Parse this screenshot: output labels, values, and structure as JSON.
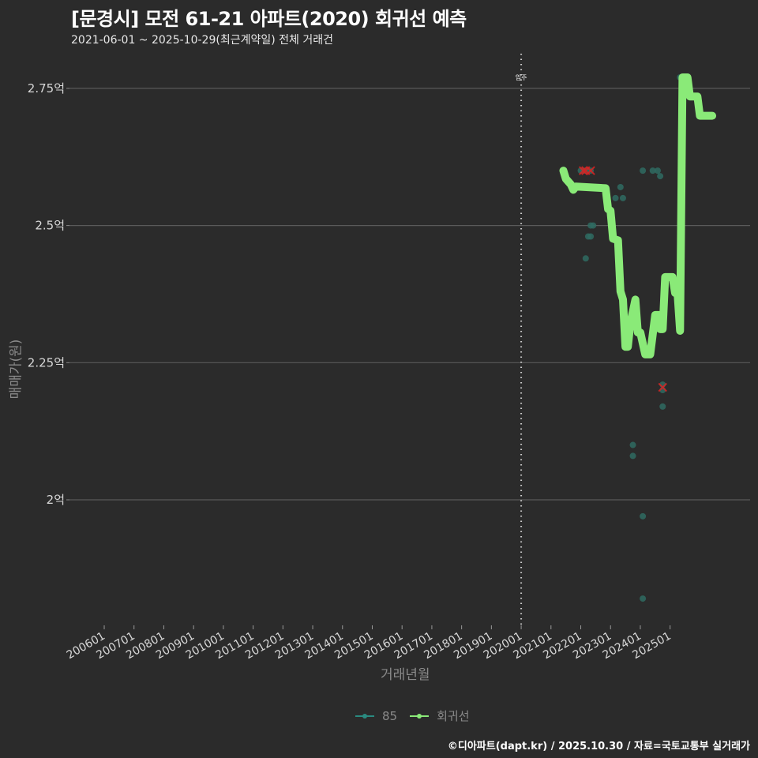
{
  "header": {
    "title": "[문경시] 모전 61-21 아파트(2020) 회귀선 예측",
    "subtitle": "2021-06-01 ~ 2025-10-29(최근계약일) 전체 거래건"
  },
  "footer": {
    "credit": "©디아파트(dapt.kr) / 2025.10.30 / 자료=국토교통부 실거래가"
  },
  "legend": [
    {
      "label": "85",
      "color": "#2a8a80"
    },
    {
      "label": "회귀선",
      "color": "#8aea78"
    }
  ],
  "colors": {
    "background": "#2b2b2b",
    "grid": "#5a5a5a",
    "line": "#8aea78",
    "point": "#2f6b62",
    "cancel": "#dd2222"
  },
  "chart_data": {
    "type": "line",
    "title": "[문경시] 모전 61-21 아파트(2020) 회귀선 예측",
    "subtitle": "2021-06-01 ~ 2025-10-29(최근계약일) 전체 거래건",
    "xlabel": "거래년월",
    "ylabel": "매매가(원)",
    "x_ticks": [
      "200601",
      "200701",
      "200801",
      "200901",
      "201001",
      "201101",
      "201201",
      "201301",
      "201401",
      "201501",
      "201601",
      "201701",
      "201801",
      "201901",
      "202001",
      "202101",
      "202201",
      "202301",
      "202401",
      "202501"
    ],
    "y_ticks": [
      "2억",
      "2.25억",
      "2.5억",
      "2.75억"
    ],
    "y_tick_values": [
      2.0,
      2.25,
      2.5,
      2.75
    ],
    "ylim": [
      1.77,
      2.8
    ],
    "grid": true,
    "legend_position": "bottom",
    "annotation": {
      "label": "입주",
      "x": "202001"
    },
    "series": [
      {
        "name": "회귀선",
        "type": "line",
        "points": [
          [
            "2021-06",
            2.6
          ],
          [
            "2021-07",
            2.585
          ],
          [
            "2021-09",
            2.575
          ],
          [
            "2021-10",
            2.565
          ],
          [
            "2021-11",
            2.571
          ],
          [
            "2022-11",
            2.568
          ],
          [
            "2022-12",
            2.53
          ],
          [
            "2023-01",
            2.527
          ],
          [
            "2023-02",
            2.476
          ],
          [
            "2023-04",
            2.473
          ],
          [
            "2023-05",
            2.38
          ],
          [
            "2023-06",
            2.365
          ],
          [
            "2023-07",
            2.279
          ],
          [
            "2023-08",
            2.279
          ],
          [
            "2023-09",
            2.322
          ],
          [
            "2023-11",
            2.365
          ],
          [
            "2023-12",
            2.305
          ],
          [
            "2024-01",
            2.305
          ],
          [
            "2024-03",
            2.265
          ],
          [
            "2024-05",
            2.265
          ],
          [
            "2024-07",
            2.337
          ],
          [
            "2024-09",
            2.337
          ],
          [
            "2024-09",
            2.311
          ],
          [
            "2024-10",
            2.311
          ],
          [
            "2024-11",
            2.406
          ],
          [
            "2025-02",
            2.406
          ],
          [
            "2025-03",
            2.377
          ],
          [
            "2025-04",
            2.377
          ],
          [
            "2025-05",
            2.308
          ],
          [
            "2025-06",
            2.77
          ],
          [
            "2025-08",
            2.77
          ],
          [
            "2025-09",
            2.735
          ],
          [
            "2025-12",
            2.735
          ],
          [
            "2026-01",
            2.7
          ],
          [
            "2026-06",
            2.7
          ]
        ]
      },
      {
        "name": "85",
        "type": "scatter",
        "points": [
          [
            "2022-01",
            2.6
          ],
          [
            "2022-02",
            2.6
          ],
          [
            "2022-03",
            2.6
          ],
          [
            "2022-05",
            2.6
          ],
          [
            "2022-03",
            2.44
          ],
          [
            "2022-04",
            2.48
          ],
          [
            "2022-05",
            2.48
          ],
          [
            "2022-05",
            2.5
          ],
          [
            "2022-06",
            2.5
          ],
          [
            "2023-03",
            2.55
          ],
          [
            "2023-05",
            2.57
          ],
          [
            "2023-06",
            2.55
          ],
          [
            "2023-10",
            2.1
          ],
          [
            "2023-10",
            2.08
          ],
          [
            "2024-02",
            2.6
          ],
          [
            "2024-06",
            2.6
          ],
          [
            "2024-08",
            2.6
          ],
          [
            "2024-09",
            2.59
          ],
          [
            "2024-02",
            1.97
          ],
          [
            "2024-02",
            1.82
          ],
          [
            "2024-10",
            2.21
          ],
          [
            "2024-10",
            2.2
          ],
          [
            "2024-10",
            2.17
          ],
          [
            "2025-05",
            2.77
          ]
        ]
      },
      {
        "name": "취소건",
        "type": "scatter",
        "marker": "x",
        "points": [
          [
            "2022-02",
            2.6
          ],
          [
            "2022-03",
            2.6
          ],
          [
            "2022-05",
            2.6
          ],
          [
            "2024-10",
            2.205
          ]
        ]
      }
    ]
  }
}
